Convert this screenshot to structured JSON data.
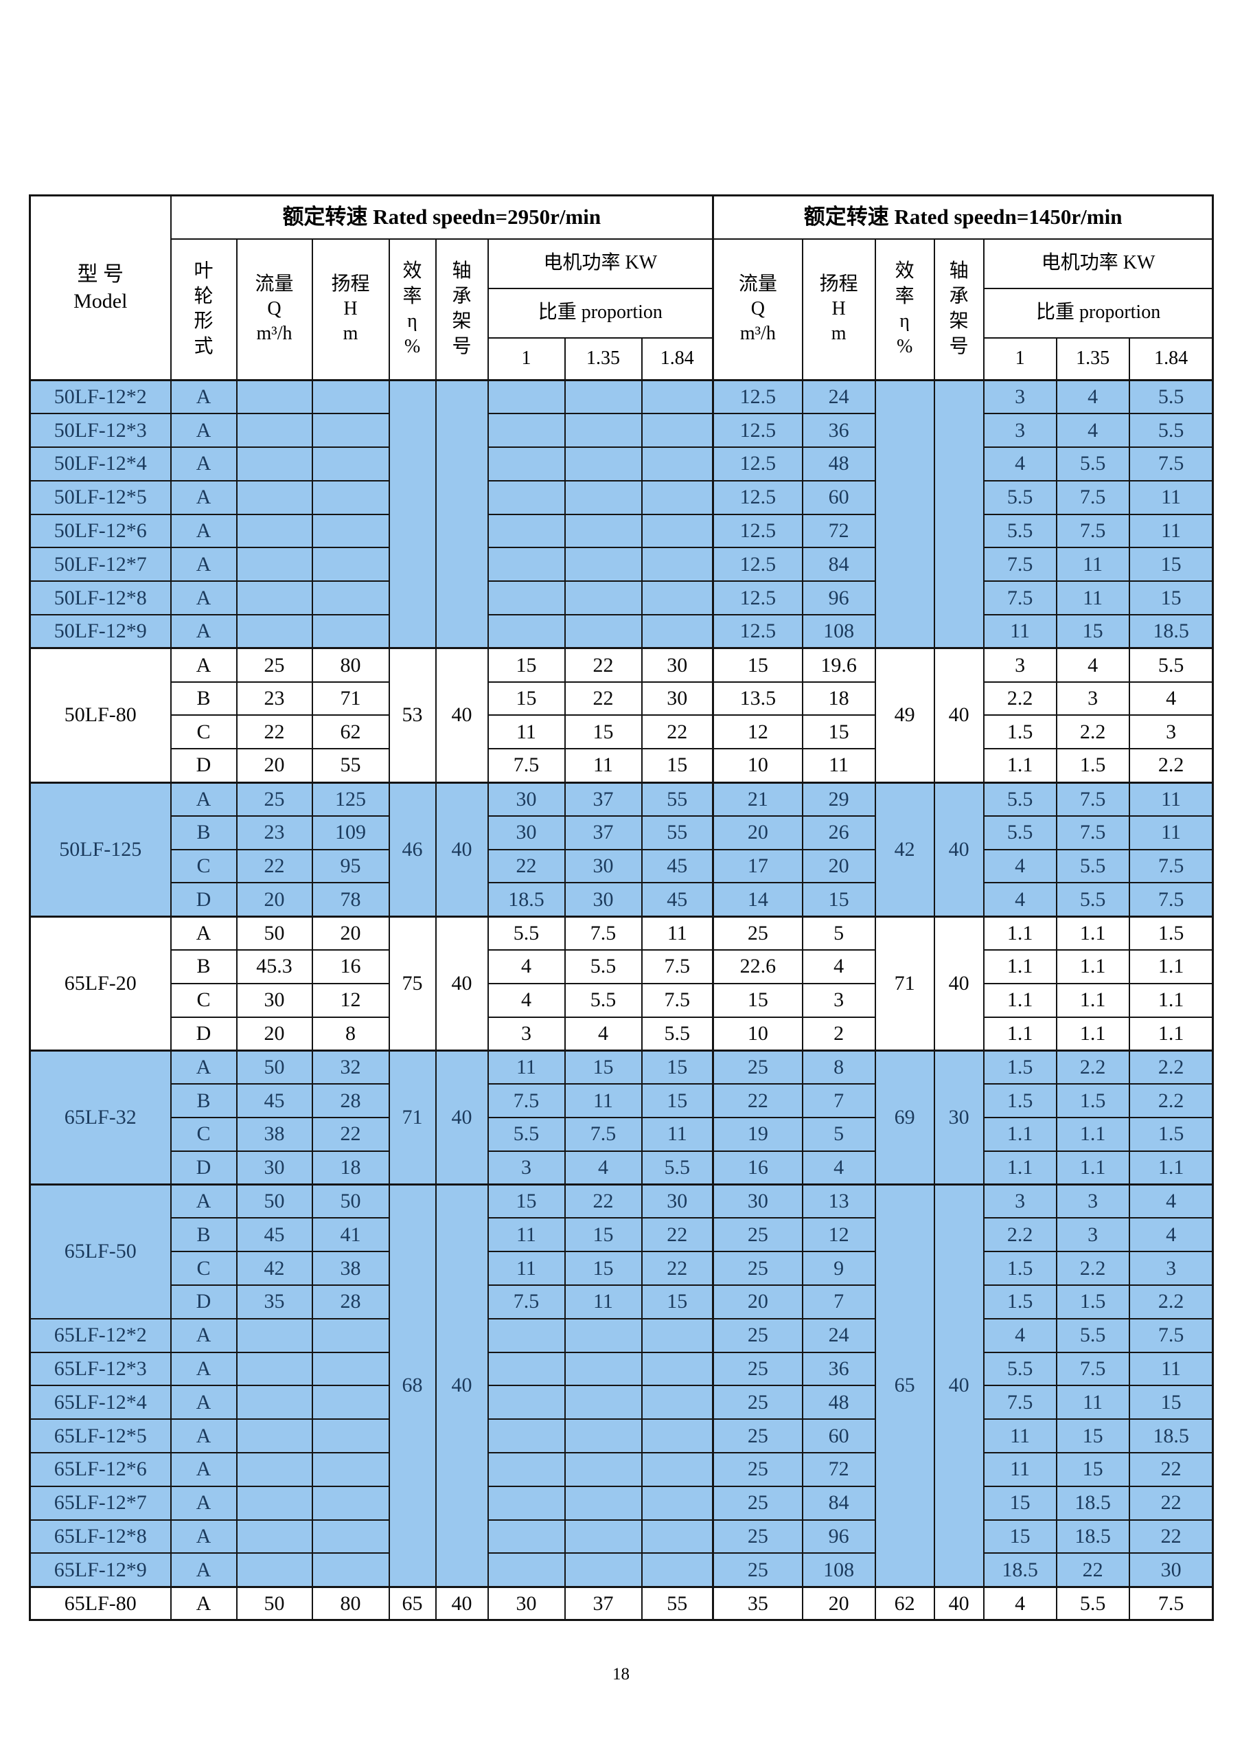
{
  "page": {
    "number": "18"
  },
  "colors": {
    "row_blue": "#9AC8EF",
    "row_white": "#FFFFFF",
    "text_on_blue": "#1B3A5C",
    "border": "#141414"
  },
  "header": {
    "model": "型 号\nModel",
    "speed_2950": "额定转速 Rated speedn=2950r/min",
    "speed_1450": "额定转速 Rated speedn=1450r/min",
    "impeller": "叶\n轮\n形\n式",
    "flow": "流量\nQ\nm³/h",
    "head": "扬程\nH\nm",
    "efficiency": "效\n率\nη\n%",
    "bearing": "轴\n承\n架\n号",
    "motor_power": "电机功率 KW",
    "proportion": "比重 proportion",
    "proportion_values": [
      "1",
      "1.35",
      "1.84"
    ]
  },
  "sections": [
    {
      "shade": "blue",
      "eff_2950": "",
      "bearing_2950": "",
      "eff_1450": "",
      "bearing_1450": "",
      "model_groups": [
        {
          "label": "50LF-12*2",
          "span": 1
        },
        {
          "label": "50LF-12*3",
          "span": 1
        },
        {
          "label": "50LF-12*4",
          "span": 1
        },
        {
          "label": "50LF-12*5",
          "span": 1
        },
        {
          "label": "50LF-12*6",
          "span": 1
        },
        {
          "label": "50LF-12*7",
          "span": 1
        },
        {
          "label": "50LF-12*8",
          "span": 1
        },
        {
          "label": "50LF-12*9",
          "span": 1
        }
      ],
      "rows": [
        {
          "impeller": "A",
          "q2950": "",
          "h2950": "",
          "p2950": [
            "",
            "",
            ""
          ],
          "q1450": "12.5",
          "h1450": "24",
          "p1450": [
            "3",
            "4",
            "5.5"
          ]
        },
        {
          "impeller": "A",
          "q2950": "",
          "h2950": "",
          "p2950": [
            "",
            "",
            ""
          ],
          "q1450": "12.5",
          "h1450": "36",
          "p1450": [
            "3",
            "4",
            "5.5"
          ]
        },
        {
          "impeller": "A",
          "q2950": "",
          "h2950": "",
          "p2950": [
            "",
            "",
            ""
          ],
          "q1450": "12.5",
          "h1450": "48",
          "p1450": [
            "4",
            "5.5",
            "7.5"
          ]
        },
        {
          "impeller": "A",
          "q2950": "",
          "h2950": "",
          "p2950": [
            "",
            "",
            ""
          ],
          "q1450": "12.5",
          "h1450": "60",
          "p1450": [
            "5.5",
            "7.5",
            "11"
          ]
        },
        {
          "impeller": "A",
          "q2950": "",
          "h2950": "",
          "p2950": [
            "",
            "",
            ""
          ],
          "q1450": "12.5",
          "h1450": "72",
          "p1450": [
            "5.5",
            "7.5",
            "11"
          ]
        },
        {
          "impeller": "A",
          "q2950": "",
          "h2950": "",
          "p2950": [
            "",
            "",
            ""
          ],
          "q1450": "12.5",
          "h1450": "84",
          "p1450": [
            "7.5",
            "11",
            "15"
          ]
        },
        {
          "impeller": "A",
          "q2950": "",
          "h2950": "",
          "p2950": [
            "",
            "",
            ""
          ],
          "q1450": "12.5",
          "h1450": "96",
          "p1450": [
            "7.5",
            "11",
            "15"
          ]
        },
        {
          "impeller": "A",
          "q2950": "",
          "h2950": "",
          "p2950": [
            "",
            "",
            ""
          ],
          "q1450": "12.5",
          "h1450": "108",
          "p1450": [
            "11",
            "15",
            "18.5"
          ]
        }
      ]
    },
    {
      "shade": "white",
      "eff_2950": "53",
      "bearing_2950": "40",
      "eff_1450": "49",
      "bearing_1450": "40",
      "model_groups": [
        {
          "label": "50LF-80",
          "span": 4
        }
      ],
      "rows": [
        {
          "impeller": "A",
          "q2950": "25",
          "h2950": "80",
          "p2950": [
            "15",
            "22",
            "30"
          ],
          "q1450": "15",
          "h1450": "19.6",
          "p1450": [
            "3",
            "4",
            "5.5"
          ]
        },
        {
          "impeller": "B",
          "q2950": "23",
          "h2950": "71",
          "p2950": [
            "15",
            "22",
            "30"
          ],
          "q1450": "13.5",
          "h1450": "18",
          "p1450": [
            "2.2",
            "3",
            "4"
          ]
        },
        {
          "impeller": "C",
          "q2950": "22",
          "h2950": "62",
          "p2950": [
            "11",
            "15",
            "22"
          ],
          "q1450": "12",
          "h1450": "15",
          "p1450": [
            "1.5",
            "2.2",
            "3"
          ]
        },
        {
          "impeller": "D",
          "q2950": "20",
          "h2950": "55",
          "p2950": [
            "7.5",
            "11",
            "15"
          ],
          "q1450": "10",
          "h1450": "11",
          "p1450": [
            "1.1",
            "1.5",
            "2.2"
          ]
        }
      ]
    },
    {
      "shade": "blue",
      "eff_2950": "46",
      "bearing_2950": "40",
      "eff_1450": "42",
      "bearing_1450": "40",
      "model_groups": [
        {
          "label": "50LF-125",
          "span": 4
        }
      ],
      "rows": [
        {
          "impeller": "A",
          "q2950": "25",
          "h2950": "125",
          "p2950": [
            "30",
            "37",
            "55"
          ],
          "q1450": "21",
          "h1450": "29",
          "p1450": [
            "5.5",
            "7.5",
            "11"
          ]
        },
        {
          "impeller": "B",
          "q2950": "23",
          "h2950": "109",
          "p2950": [
            "30",
            "37",
            "55"
          ],
          "q1450": "20",
          "h1450": "26",
          "p1450": [
            "5.5",
            "7.5",
            "11"
          ]
        },
        {
          "impeller": "C",
          "q2950": "22",
          "h2950": "95",
          "p2950": [
            "22",
            "30",
            "45"
          ],
          "q1450": "17",
          "h1450": "20",
          "p1450": [
            "4",
            "5.5",
            "7.5"
          ]
        },
        {
          "impeller": "D",
          "q2950": "20",
          "h2950": "78",
          "p2950": [
            "18.5",
            "30",
            "45"
          ],
          "q1450": "14",
          "h1450": "15",
          "p1450": [
            "4",
            "5.5",
            "7.5"
          ]
        }
      ]
    },
    {
      "shade": "white",
      "eff_2950": "75",
      "bearing_2950": "40",
      "eff_1450": "71",
      "bearing_1450": "40",
      "model_groups": [
        {
          "label": "65LF-20",
          "span": 4
        }
      ],
      "rows": [
        {
          "impeller": "A",
          "q2950": "50",
          "h2950": "20",
          "p2950": [
            "5.5",
            "7.5",
            "11"
          ],
          "q1450": "25",
          "h1450": "5",
          "p1450": [
            "1.1",
            "1.1",
            "1.5"
          ]
        },
        {
          "impeller": "B",
          "q2950": "45.3",
          "h2950": "16",
          "p2950": [
            "4",
            "5.5",
            "7.5"
          ],
          "q1450": "22.6",
          "h1450": "4",
          "p1450": [
            "1.1",
            "1.1",
            "1.1"
          ]
        },
        {
          "impeller": "C",
          "q2950": "30",
          "h2950": "12",
          "p2950": [
            "4",
            "5.5",
            "7.5"
          ],
          "q1450": "15",
          "h1450": "3",
          "p1450": [
            "1.1",
            "1.1",
            "1.1"
          ]
        },
        {
          "impeller": "D",
          "q2950": "20",
          "h2950": "8",
          "p2950": [
            "3",
            "4",
            "5.5"
          ],
          "q1450": "10",
          "h1450": "2",
          "p1450": [
            "1.1",
            "1.1",
            "1.1"
          ]
        }
      ]
    },
    {
      "shade": "blue",
      "eff_2950": "71",
      "bearing_2950": "40",
      "eff_1450": "69",
      "bearing_1450": "30",
      "model_groups": [
        {
          "label": "65LF-32",
          "span": 4
        }
      ],
      "rows": [
        {
          "impeller": "A",
          "q2950": "50",
          "h2950": "32",
          "p2950": [
            "11",
            "15",
            "15"
          ],
          "q1450": "25",
          "h1450": "8",
          "p1450": [
            "1.5",
            "2.2",
            "2.2"
          ]
        },
        {
          "impeller": "B",
          "q2950": "45",
          "h2950": "28",
          "p2950": [
            "7.5",
            "11",
            "15"
          ],
          "q1450": "22",
          "h1450": "7",
          "p1450": [
            "1.5",
            "1.5",
            "2.2"
          ]
        },
        {
          "impeller": "C",
          "q2950": "38",
          "h2950": "22",
          "p2950": [
            "5.5",
            "7.5",
            "11"
          ],
          "q1450": "19",
          "h1450": "5",
          "p1450": [
            "1.1",
            "1.1",
            "1.5"
          ]
        },
        {
          "impeller": "D",
          "q2950": "30",
          "h2950": "18",
          "p2950": [
            "3",
            "4",
            "5.5"
          ],
          "q1450": "16",
          "h1450": "4",
          "p1450": [
            "1.1",
            "1.1",
            "1.1"
          ]
        }
      ]
    },
    {
      "shade": "blue",
      "eff_2950": "68",
      "bearing_2950": "40",
      "eff_1450": "65",
      "bearing_1450": "40",
      "model_groups": [
        {
          "label": "65LF-50",
          "span": 4
        },
        {
          "label": "65LF-12*2",
          "span": 1
        },
        {
          "label": "65LF-12*3",
          "span": 1
        },
        {
          "label": "65LF-12*4",
          "span": 1
        },
        {
          "label": "65LF-12*5",
          "span": 1
        },
        {
          "label": "65LF-12*6",
          "span": 1
        },
        {
          "label": "65LF-12*7",
          "span": 1
        },
        {
          "label": "65LF-12*8",
          "span": 1
        },
        {
          "label": "65LF-12*9",
          "span": 1
        }
      ],
      "rows": [
        {
          "impeller": "A",
          "q2950": "50",
          "h2950": "50",
          "p2950": [
            "15",
            "22",
            "30"
          ],
          "q1450": "30",
          "h1450": "13",
          "p1450": [
            "3",
            "3",
            "4"
          ]
        },
        {
          "impeller": "B",
          "q2950": "45",
          "h2950": "41",
          "p2950": [
            "11",
            "15",
            "22"
          ],
          "q1450": "25",
          "h1450": "12",
          "p1450": [
            "2.2",
            "3",
            "4"
          ]
        },
        {
          "impeller": "C",
          "q2950": "42",
          "h2950": "38",
          "p2950": [
            "11",
            "15",
            "22"
          ],
          "q1450": "25",
          "h1450": "9",
          "p1450": [
            "1.5",
            "2.2",
            "3"
          ]
        },
        {
          "impeller": "D",
          "q2950": "35",
          "h2950": "28",
          "p2950": [
            "7.5",
            "11",
            "15"
          ],
          "q1450": "20",
          "h1450": "7",
          "p1450": [
            "1.5",
            "1.5",
            "2.2"
          ]
        },
        {
          "impeller": "A",
          "q2950": "",
          "h2950": "",
          "p2950": [
            "",
            "",
            ""
          ],
          "q1450": "25",
          "h1450": "24",
          "p1450": [
            "4",
            "5.5",
            "7.5"
          ]
        },
        {
          "impeller": "A",
          "q2950": "",
          "h2950": "",
          "p2950": [
            "",
            "",
            ""
          ],
          "q1450": "25",
          "h1450": "36",
          "p1450": [
            "5.5",
            "7.5",
            "11"
          ]
        },
        {
          "impeller": "A",
          "q2950": "",
          "h2950": "",
          "p2950": [
            "",
            "",
            ""
          ],
          "q1450": "25",
          "h1450": "48",
          "p1450": [
            "7.5",
            "11",
            "15"
          ]
        },
        {
          "impeller": "A",
          "q2950": "",
          "h2950": "",
          "p2950": [
            "",
            "",
            ""
          ],
          "q1450": "25",
          "h1450": "60",
          "p1450": [
            "11",
            "15",
            "18.5"
          ]
        },
        {
          "impeller": "A",
          "q2950": "",
          "h2950": "",
          "p2950": [
            "",
            "",
            ""
          ],
          "q1450": "25",
          "h1450": "72",
          "p1450": [
            "11",
            "15",
            "22"
          ]
        },
        {
          "impeller": "A",
          "q2950": "",
          "h2950": "",
          "p2950": [
            "",
            "",
            ""
          ],
          "q1450": "25",
          "h1450": "84",
          "p1450": [
            "15",
            "18.5",
            "22"
          ]
        },
        {
          "impeller": "A",
          "q2950": "",
          "h2950": "",
          "p2950": [
            "",
            "",
            ""
          ],
          "q1450": "25",
          "h1450": "96",
          "p1450": [
            "15",
            "18.5",
            "22"
          ]
        },
        {
          "impeller": "A",
          "q2950": "",
          "h2950": "",
          "p2950": [
            "",
            "",
            ""
          ],
          "q1450": "25",
          "h1450": "108",
          "p1450": [
            "18.5",
            "22",
            "30"
          ]
        }
      ]
    },
    {
      "shade": "white",
      "eff_2950": "65",
      "bearing_2950": "40",
      "eff_1450": "62",
      "bearing_1450": "40",
      "model_groups": [
        {
          "label": "65LF-80",
          "span": 1
        }
      ],
      "rows": [
        {
          "impeller": "A",
          "q2950": "50",
          "h2950": "80",
          "p2950": [
            "30",
            "37",
            "55"
          ],
          "q1450": "35",
          "h1450": "20",
          "p1450": [
            "4",
            "5.5",
            "7.5"
          ]
        }
      ]
    }
  ]
}
